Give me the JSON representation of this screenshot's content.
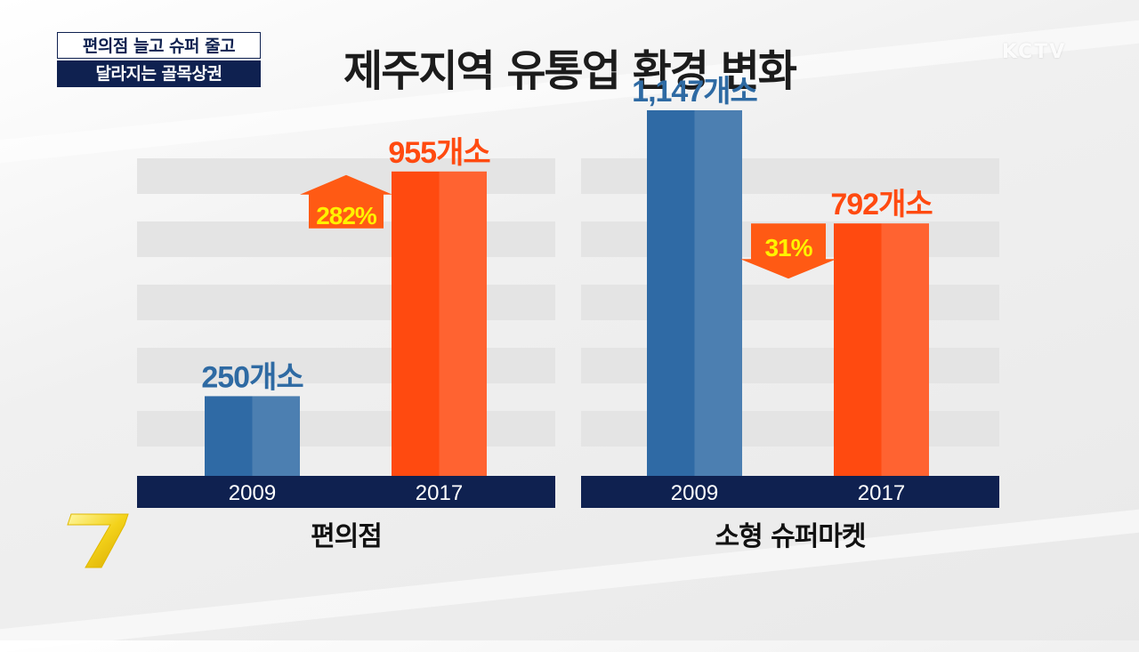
{
  "caption": {
    "line1": "편의점 늘고 슈퍼 줄고",
    "line2": "달라지는 골목상권"
  },
  "title": "제주지역 유통업 환경 변화",
  "watermark": "KCTV",
  "colors": {
    "blue": "#2f6aa5",
    "orange": "#ff4a10",
    "navy": "#0f2150",
    "label_blue": "#2e6aa3",
    "label_orange": "#ff4a10",
    "pct_yellow": "#fff200"
  },
  "chart_data": [
    {
      "type": "bar",
      "title": "편의점",
      "categories": [
        "2009",
        "2017"
      ],
      "values": [
        250,
        955
      ],
      "value_labels": [
        "250개소",
        "955개소"
      ],
      "change": {
        "label": "282%",
        "direction": "up"
      },
      "ylim": [
        0,
        1200
      ]
    },
    {
      "type": "bar",
      "title": "소형 슈퍼마켓",
      "categories": [
        "2009",
        "2017"
      ],
      "values": [
        1147,
        792
      ],
      "value_labels": [
        "1,147개소",
        "792개소"
      ],
      "change": {
        "label": "31%",
        "direction": "down"
      },
      "ylim": [
        0,
        1200
      ]
    }
  ]
}
